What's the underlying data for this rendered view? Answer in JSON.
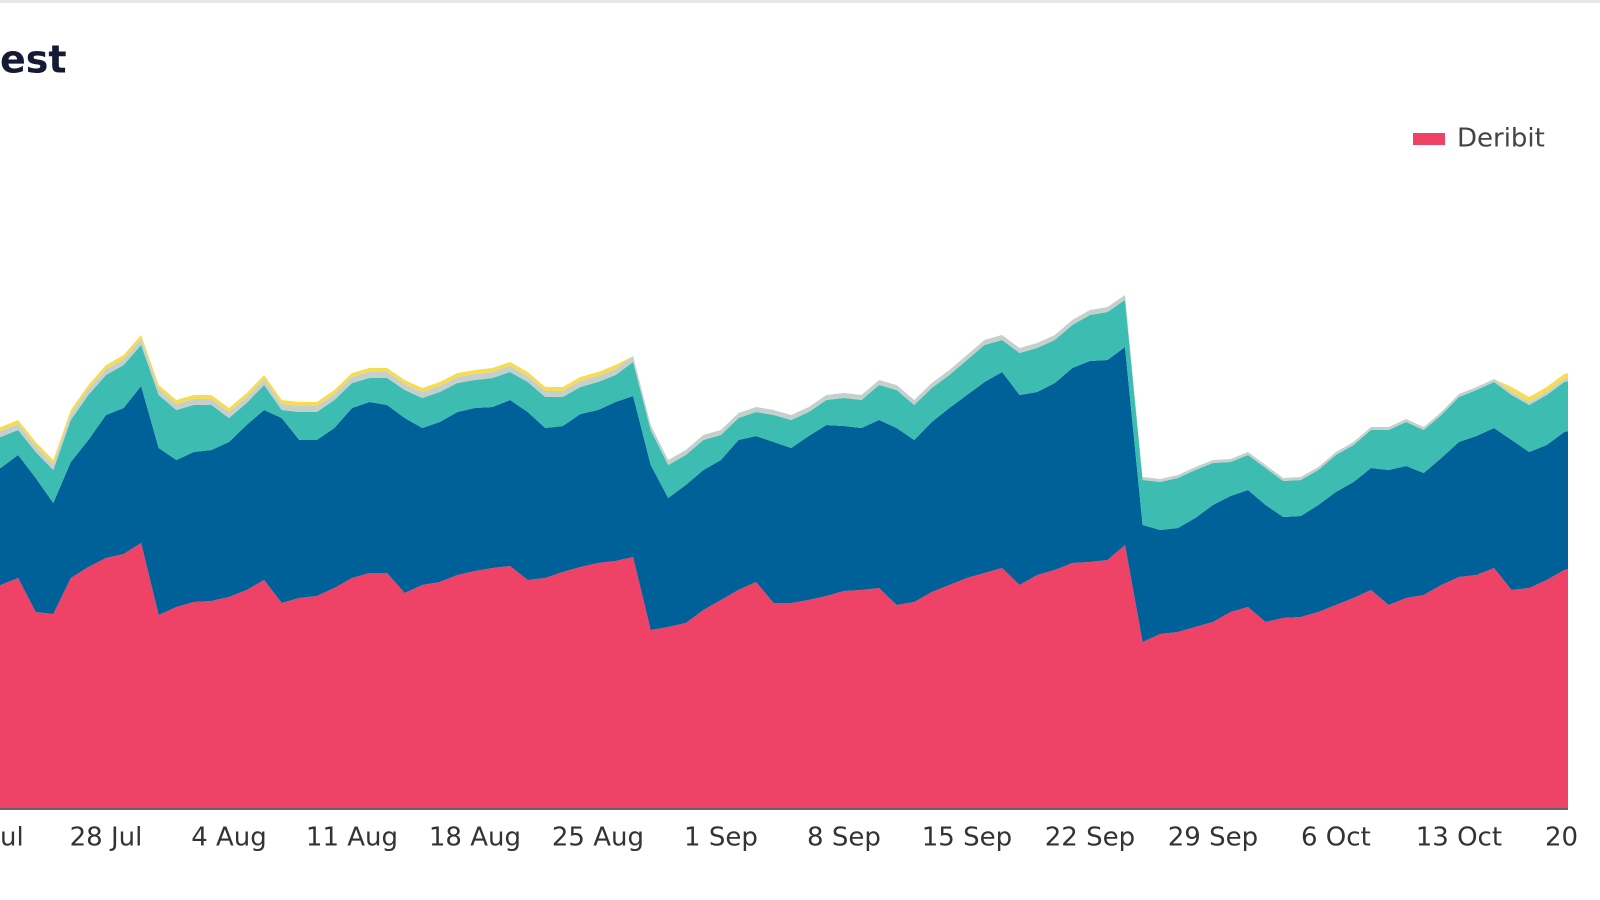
{
  "chart_data": {
    "type": "stacked-area",
    "title": "est",
    "categories": [
      "ul",
      null,
      null,
      null,
      null,
      null,
      null,
      "28 Jul",
      null,
      null,
      null,
      null,
      null,
      null,
      "4 Aug",
      null,
      null,
      null,
      null,
      null,
      null,
      "11 Aug",
      null,
      null,
      null,
      null,
      null,
      null,
      "18 Aug",
      null,
      null,
      null,
      null,
      null,
      null,
      "25 Aug",
      null,
      null,
      null,
      null,
      null,
      null,
      "1 Sep",
      null,
      null,
      null,
      null,
      null,
      null,
      "8 Sep",
      null,
      null,
      null,
      null,
      null,
      null,
      "15 Sep",
      null,
      null,
      null,
      null,
      null,
      null,
      "22 Sep",
      null,
      null,
      null,
      null,
      null,
      null,
      "29 Sep",
      null,
      null,
      null,
      null,
      null,
      null,
      "6 Oct",
      null,
      null,
      null,
      null,
      null,
      null,
      "13 Oct",
      null,
      null,
      null,
      null,
      null,
      null,
      "20"
    ],
    "ylim": [
      0,
      700
    ],
    "legend": "top-right",
    "series": [
      {
        "name": "Deribit",
        "color": "#ef4267",
        "values": [
          218,
          223,
          230,
          196,
          194,
          230,
          241,
          250,
          254,
          265,
          193,
          201,
          206,
          207,
          211,
          218,
          228,
          205,
          210,
          212,
          220,
          230,
          235,
          235,
          215,
          223,
          226,
          233,
          237,
          240,
          242,
          228,
          230,
          236,
          241,
          245,
          247,
          251,
          178,
          181,
          185,
          198,
          208,
          218,
          226,
          205,
          205,
          208,
          212,
          217,
          218,
          220,
          203,
          206,
          216,
          223,
          230,
          235,
          240,
          223,
          233,
          238,
          245,
          246,
          248,
          263,
          166,
          174,
          176,
          181,
          186,
          196,
          201,
          186,
          190,
          191,
          196,
          203,
          210,
          218,
          203,
          210,
          213,
          223,
          231,
          233,
          240,
          218,
          220,
          228,
          238,
          243
        ]
      },
      {
        "color": "#006199",
        "values": [
          118,
          117,
          123,
          134,
          111,
          116,
          127,
          143,
          146,
          157,
          167,
          147,
          150,
          151,
          155,
          165,
          170,
          185,
          158,
          156,
          160,
          170,
          171,
          168,
          175,
          157,
          160,
          163,
          163,
          161,
          166,
          168,
          150,
          146,
          153,
          153,
          159,
          161,
          165,
          129,
          138,
          140,
          140,
          150,
          146,
          161,
          155,
          164,
          171,
          165,
          162,
          168,
          177,
          162,
          170,
          177,
          183,
          191,
          196,
          190,
          183,
          187,
          195,
          201,
          200,
          198,
          117,
          104,
          104,
          109,
          117,
          116,
          117,
          117,
          101,
          101,
          107,
          113,
          116,
          122,
          135,
          132,
          122,
          127,
          135,
          139,
          140,
          150,
          136,
          135,
          138,
          137
        ]
      },
      {
        "color": "#3dbcb1",
        "values": [
          32,
          31,
          25,
          26,
          33,
          42,
          45,
          40,
          43,
          41,
          53,
          50,
          47,
          45,
          24,
          22,
          25,
          8,
          28,
          28,
          28,
          25,
          24,
          27,
          28,
          30,
          30,
          29,
          28,
          29,
          28,
          30,
          31,
          29,
          27,
          28,
          27,
          34,
          35,
          33,
          30,
          30,
          25,
          22,
          24,
          27,
          28,
          24,
          25,
          28,
          28,
          35,
          38,
          35,
          34,
          33,
          35,
          37,
          32,
          42,
          44,
          43,
          43,
          46,
          48,
          47,
          45,
          48,
          50,
          48,
          42,
          34,
          35,
          37,
          36,
          36,
          35,
          37,
          37,
          38,
          40,
          44,
          43,
          43,
          45,
          46,
          46,
          45,
          47,
          50,
          50,
          50
        ]
      },
      {
        "color": "#c5cfcc",
        "values": [
          6,
          6,
          6,
          6,
          6,
          6,
          6,
          6,
          6,
          6,
          6,
          6,
          6,
          6,
          6,
          6,
          6,
          6,
          6,
          6,
          6,
          6,
          6,
          6,
          6,
          6,
          6,
          6,
          6,
          6,
          6,
          6,
          6,
          6,
          6,
          6,
          6,
          6,
          5,
          5,
          5,
          5,
          5,
          5,
          5,
          5,
          5,
          5,
          5,
          5,
          5,
          5,
          5,
          5,
          5,
          5,
          5,
          5,
          5,
          5,
          5,
          5,
          5,
          5,
          5,
          5,
          3,
          3,
          3,
          3,
          3,
          3,
          3,
          3,
          3,
          3,
          3,
          3,
          3,
          3,
          3,
          3,
          3,
          3,
          3,
          3,
          3,
          3,
          3,
          3,
          3,
          3
        ]
      },
      {
        "color": "#f6dc52",
        "values": [
          4,
          4,
          4,
          4,
          4,
          4,
          4,
          4,
          4,
          4,
          4,
          4,
          4,
          4,
          4,
          4,
          4,
          4,
          4,
          4,
          4,
          4,
          4,
          4,
          4,
          4,
          4,
          4,
          4,
          4,
          4,
          4,
          4,
          4,
          4,
          4,
          4,
          0,
          0,
          0,
          0,
          0,
          0,
          0,
          0,
          0,
          0,
          0,
          0,
          0,
          0,
          0,
          0,
          0,
          0,
          0,
          0,
          0,
          0,
          0,
          0,
          0,
          0,
          0,
          0,
          0,
          0,
          0,
          0,
          0,
          0,
          0,
          0,
          0,
          0,
          0,
          0,
          0,
          0,
          0,
          0,
          0,
          0,
          0,
          0,
          0,
          0,
          5,
          5,
          5,
          5,
          5
        ]
      }
    ]
  }
}
